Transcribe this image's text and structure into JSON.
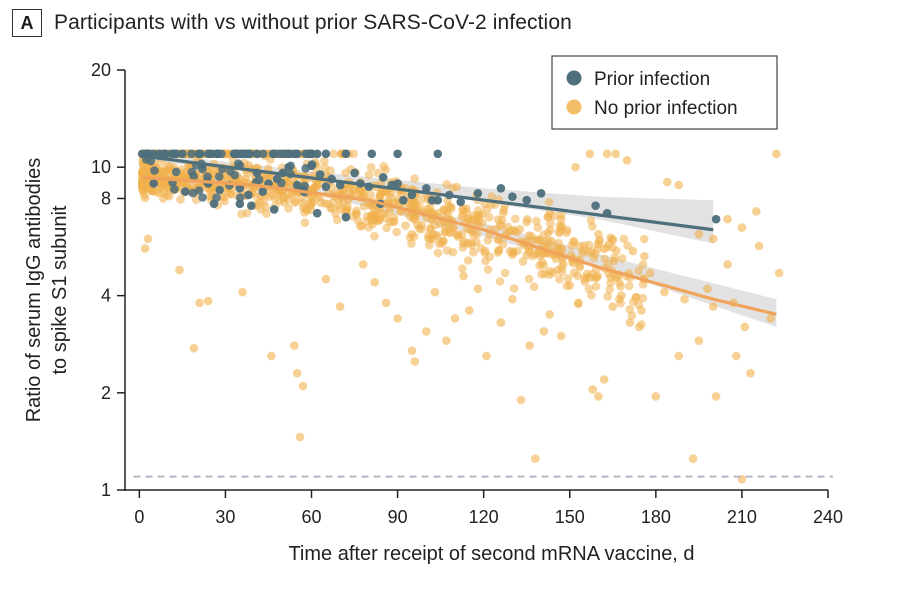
{
  "panel": {
    "letter": "A",
    "title": "Participants with vs without prior SARS-CoV-2 infection"
  },
  "colors": {
    "prior": "#4e6f7c",
    "no_prior": "#f1b04c",
    "no_prior_line": "#f0a35a",
    "band": "#cfcfcf",
    "threshold": "#b3b8c6"
  },
  "chart_data": {
    "type": "scatter",
    "xlabel": "Time after receipt of second mRNA vaccine, d",
    "ylabel_lines": [
      "Ratio of serum IgG antibodies",
      "to spike S1 subunit"
    ],
    "x_ticks": [
      0,
      30,
      60,
      90,
      120,
      150,
      180,
      210,
      240
    ],
    "y_ticks": [
      1,
      2,
      4,
      8,
      10,
      20
    ],
    "xlim": [
      -5,
      240
    ],
    "ylim": [
      1,
      20
    ],
    "y_scale": "log",
    "threshold_y": 1.1,
    "legend_position": "top-right",
    "series": [
      {
        "name": "Prior infection",
        "fit_line": [
          [
            2,
            10.8
          ],
          [
            200,
            6.4
          ]
        ],
        "band": {
          "x": [
            2,
            60,
            120,
            160,
            200
          ],
          "lower": [
            10.5,
            9.2,
            7.8,
            6.9,
            5.8
          ],
          "upper": [
            11.1,
            9.7,
            8.6,
            8.1,
            7.9
          ]
        },
        "points": [
          [
            1,
            11.0
          ],
          [
            3,
            11.0
          ],
          [
            5,
            11.0
          ],
          [
            7,
            11.0
          ],
          [
            9,
            11.0
          ],
          [
            12,
            11.0
          ],
          [
            15,
            11.0
          ],
          [
            24,
            11.0
          ],
          [
            25,
            11.0
          ],
          [
            33,
            11.0
          ],
          [
            34,
            11.0
          ],
          [
            37,
            11.0
          ],
          [
            38,
            11.0
          ],
          [
            41,
            11.0
          ],
          [
            47,
            11.0
          ],
          [
            50,
            11.0
          ],
          [
            52,
            11.0
          ],
          [
            55,
            11.0
          ],
          [
            58,
            11.0
          ],
          [
            60,
            11.0
          ],
          [
            62,
            11.0
          ],
          [
            65,
            11.0
          ],
          [
            72,
            11.0
          ],
          [
            81,
            11.0
          ],
          [
            90,
            11.0
          ],
          [
            104,
            11.0
          ],
          [
            5,
            8.9
          ],
          [
            16,
            8.4
          ],
          [
            24,
            8.9
          ],
          [
            35,
            8.6
          ],
          [
            38,
            8.2
          ],
          [
            41,
            9.6
          ],
          [
            43,
            8.4
          ],
          [
            45,
            8.9
          ],
          [
            48,
            9.2
          ],
          [
            50,
            9.6
          ],
          [
            52,
            10.0
          ],
          [
            55,
            8.8
          ],
          [
            57,
            8.5
          ],
          [
            60,
            10.1
          ],
          [
            63,
            9.5
          ],
          [
            65,
            8.7
          ],
          [
            67,
            9.2
          ],
          [
            70,
            8.8
          ],
          [
            75,
            9.6
          ],
          [
            77,
            8.9
          ],
          [
            80,
            8.7
          ],
          [
            85,
            9.3
          ],
          [
            88,
            8.8
          ],
          [
            90,
            8.9
          ],
          [
            95,
            8.2
          ],
          [
            100,
            8.6
          ],
          [
            104,
            7.9
          ],
          [
            108,
            8.2
          ],
          [
            112,
            7.8
          ],
          [
            118,
            8.3
          ],
          [
            126,
            8.6
          ],
          [
            130,
            8.1
          ],
          [
            140,
            8.3
          ],
          [
            163,
            7.2
          ],
          [
            26,
            7.7
          ],
          [
            28,
            8.5
          ],
          [
            35,
            7.7
          ],
          [
            39,
            7.6
          ],
          [
            47,
            7.4
          ],
          [
            62,
            7.2
          ],
          [
            72,
            7.0
          ],
          [
            84,
            7.7
          ],
          [
            92,
            7.9
          ],
          [
            102,
            7.9
          ],
          [
            135,
            7.9
          ],
          [
            159,
            7.6
          ],
          [
            201,
            6.9
          ]
        ]
      },
      {
        "name": "No prior infection",
        "fit_line": [
          [
            1,
            9.3
          ],
          [
            40,
            8.8
          ],
          [
            80,
            7.9
          ],
          [
            120,
            6.4
          ],
          [
            160,
            4.9
          ],
          [
            200,
            3.9
          ],
          [
            222,
            3.5
          ]
        ],
        "band": {
          "x": [
            1,
            60,
            120,
            170,
            222
          ],
          "lower": [
            9.0,
            8.3,
            6.1,
            4.6,
            3.2
          ],
          "upper": [
            9.6,
            8.7,
            6.7,
            5.1,
            3.9
          ]
        },
        "points": [
          [
            2,
            5.6
          ],
          [
            3,
            6.0
          ],
          [
            14,
            4.8
          ],
          [
            21,
            3.8
          ],
          [
            24,
            3.85
          ],
          [
            19,
            2.75
          ],
          [
            36,
            4.1
          ],
          [
            46,
            2.6
          ],
          [
            54,
            2.8
          ],
          [
            55,
            2.3
          ],
          [
            57,
            2.1
          ],
          [
            56,
            1.46
          ],
          [
            65,
            4.5
          ],
          [
            70,
            3.7
          ],
          [
            78,
            5.0
          ],
          [
            82,
            4.4
          ],
          [
            86,
            3.8
          ],
          [
            90,
            3.4
          ],
          [
            95,
            2.7
          ],
          [
            96,
            2.5
          ],
          [
            100,
            3.1
          ],
          [
            103,
            4.1
          ],
          [
            107,
            2.9
          ],
          [
            110,
            3.4
          ],
          [
            113,
            4.6
          ],
          [
            115,
            3.6
          ],
          [
            118,
            4.2
          ],
          [
            121,
            2.6
          ],
          [
            126,
            3.3
          ],
          [
            130,
            3.9
          ],
          [
            133,
            1.9
          ],
          [
            136,
            2.8
          ],
          [
            138,
            1.25
          ],
          [
            141,
            3.1
          ],
          [
            143,
            3.5
          ],
          [
            147,
            3.0
          ],
          [
            150,
            4.3
          ],
          [
            153,
            3.8
          ],
          [
            158,
            2.05
          ],
          [
            160,
            1.95
          ],
          [
            162,
            2.2
          ],
          [
            165,
            3.7
          ],
          [
            168,
            4.0
          ],
          [
            171,
            3.3
          ],
          [
            175,
            3.6
          ],
          [
            178,
            4.7
          ],
          [
            180,
            1.95
          ],
          [
            183,
            4.1
          ],
          [
            188,
            2.6
          ],
          [
            190,
            3.9
          ],
          [
            193,
            1.25
          ],
          [
            195,
            2.9
          ],
          [
            198,
            4.2
          ],
          [
            200,
            3.7
          ],
          [
            201,
            1.95
          ],
          [
            205,
            5.0
          ],
          [
            207,
            3.8
          ],
          [
            208,
            2.6
          ],
          [
            210,
            1.08
          ],
          [
            211,
            3.2
          ],
          [
            213,
            2.3
          ],
          [
            216,
            5.7
          ],
          [
            220,
            3.4
          ],
          [
            223,
            4.7
          ],
          [
            222,
            11.0
          ],
          [
            200,
            6.0
          ],
          [
            205,
            6.9
          ],
          [
            210,
            6.5
          ],
          [
            215,
            7.3
          ],
          [
            152,
            10.0
          ],
          [
            157,
            11.0
          ],
          [
            163,
            11.0
          ],
          [
            166,
            11.0
          ],
          [
            170,
            10.5
          ],
          [
            184,
            9.0
          ],
          [
            188,
            8.8
          ],
          [
            195,
            6.2
          ],
          [
            143,
            7.2
          ],
          [
            147,
            6.9
          ],
          [
            160,
            6.2
          ],
          [
            172,
            5.5
          ],
          [
            176,
            5.3
          ]
        ]
      }
    ]
  }
}
